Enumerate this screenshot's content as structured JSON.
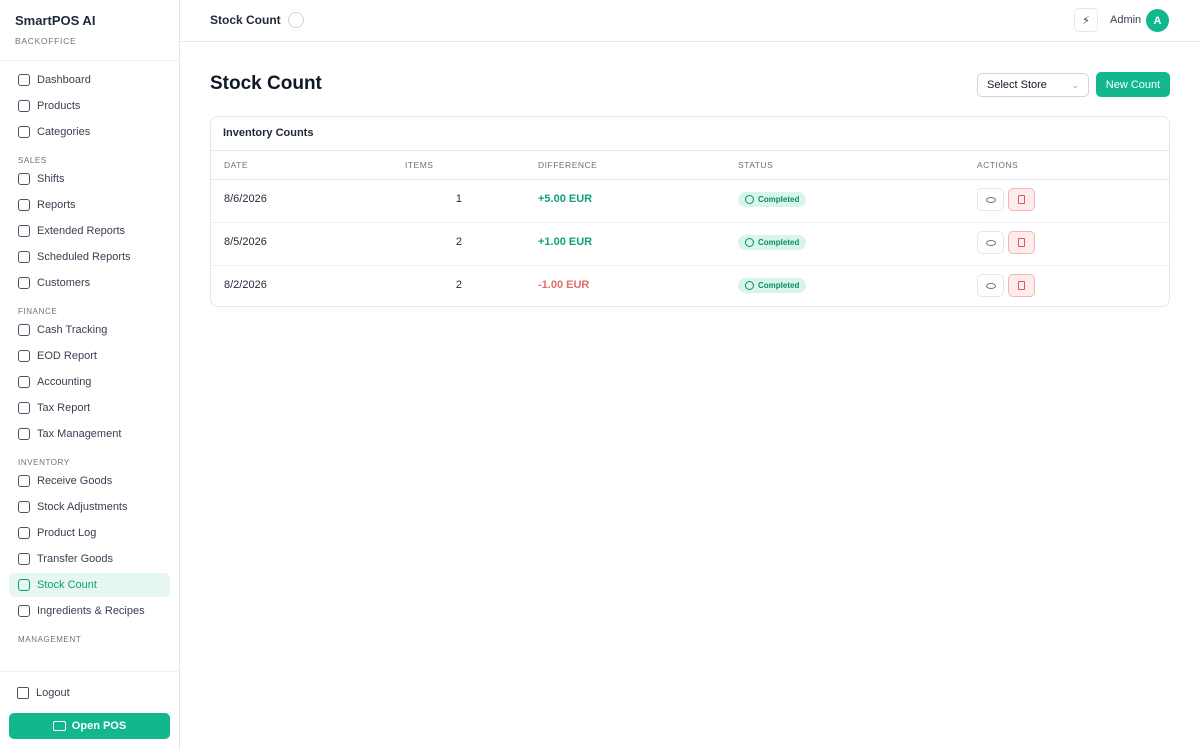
{
  "sidebar": {
    "brand": "SmartPOS AI",
    "subtitle": "BACKOFFICE",
    "sections": [
      {
        "items": [
          "Dashboard",
          "Products",
          "Categories"
        ]
      },
      {
        "title": "SALES",
        "items": [
          "Shifts",
          "Reports",
          "Extended Reports",
          "Scheduled Reports",
          "Customers"
        ]
      },
      {
        "title": "FINANCE",
        "items": [
          "Cash Tracking",
          "EOD Report",
          "Accounting",
          "Tax Report",
          "Tax Management"
        ]
      },
      {
        "title": "INVENTORY",
        "items": [
          "Receive Goods",
          "Stock Adjustments",
          "Product Log",
          "Transfer Goods",
          {
            "label": "Stock Count",
            "active": true
          },
          "Ingredients & Recipes"
        ]
      },
      {
        "title": "MANAGEMENT",
        "items": []
      }
    ],
    "logout": "Logout",
    "open_pos": "Open POS"
  },
  "header": {
    "title": "Stock Count",
    "user": "Admin",
    "avatar": "A"
  },
  "page": {
    "title": "Stock Count",
    "store_select": "Select Store",
    "new_button": "New Count"
  },
  "table": {
    "title": "Inventory Counts",
    "columns": [
      "DATE",
      "ITEMS",
      "DIFFERENCE",
      "STATUS",
      "ACTIONS"
    ],
    "rows": [
      [
        "8/6/2026",
        1,
        "+5.00 EUR",
        "Completed"
      ],
      [
        "8/5/2026",
        2,
        "+1.00 EUR",
        "Completed"
      ],
      [
        "8/2/2026",
        2,
        "-1.00 EUR",
        "Completed"
      ]
    ]
  }
}
